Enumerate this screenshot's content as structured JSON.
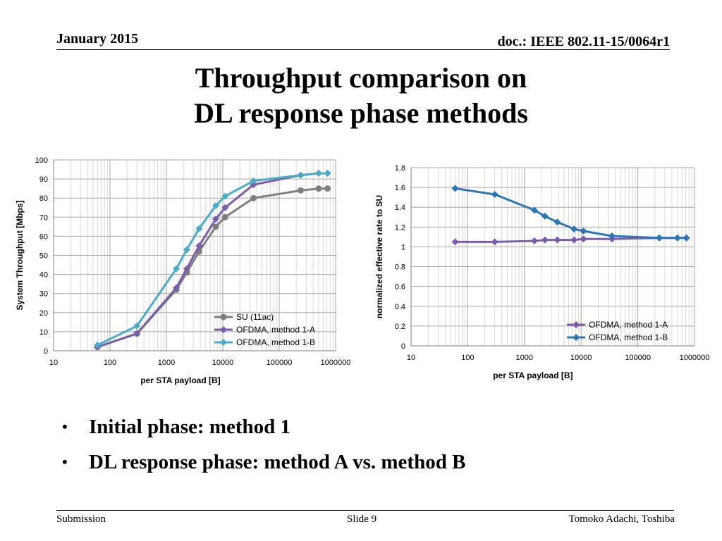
{
  "header": {
    "date": "January 2015",
    "doc": "doc.: IEEE 802.11-15/0064r1"
  },
  "title": {
    "line1": "Throughput comparison on",
    "line2": "DL response phase methods"
  },
  "bullets": [
    "Initial phase: method 1",
    "DL response phase: method A vs. method B"
  ],
  "footer": {
    "left": "Submission",
    "center": "Slide 9",
    "right": "Tomoko Adachi, Toshiba"
  },
  "chart_data": [
    {
      "type": "line",
      "xscale": "log",
      "xlim": [
        10,
        1000000
      ],
      "ylim": [
        0,
        100
      ],
      "xticks": [
        10,
        100,
        1000,
        10000,
        100000,
        1000000
      ],
      "xtick_labels": [
        "10",
        "100",
        "1000",
        "10000",
        "100000",
        "1000000"
      ],
      "yticks": [
        0,
        10,
        20,
        30,
        40,
        50,
        60,
        70,
        80,
        90,
        100
      ],
      "ytick_labels": [
        "0",
        "10",
        "20",
        "30",
        "40",
        "50",
        "60",
        "70",
        "80",
        "90",
        "100"
      ],
      "xlabel": "per STA payload [B]",
      "ylabel": "System Throughput [Mbps]",
      "grid": true,
      "legend_position": "bottom-right",
      "series": [
        {
          "name": "SU (11ac)",
          "color": "#7f7f7f",
          "marker": "circle",
          "x": [
            60,
            300,
            1500,
            2300,
            3800,
            7500,
            11000,
            35000,
            240000,
            500000,
            720000
          ],
          "y": [
            2,
            9,
            32,
            41,
            52,
            65,
            70,
            80,
            84,
            85,
            85
          ]
        },
        {
          "name": "OFDMA, method 1-A",
          "color": "#7b5ea7",
          "marker": "diamond",
          "x": [
            60,
            300,
            1500,
            2300,
            3800,
            7500,
            11000,
            35000,
            240000,
            500000,
            720000
          ],
          "y": [
            2,
            9,
            33,
            43,
            55,
            69,
            75,
            87,
            92,
            93,
            93
          ]
        },
        {
          "name": "OFDMA, method 1-B",
          "color": "#4bacc6",
          "marker": "diamond",
          "x": [
            60,
            300,
            1500,
            2300,
            3800,
            7500,
            11000,
            35000,
            240000,
            500000,
            720000
          ],
          "y": [
            3,
            13,
            43,
            53,
            64,
            76,
            81,
            89,
            92,
            93,
            93
          ]
        }
      ]
    },
    {
      "type": "line",
      "xscale": "log",
      "xlim": [
        10,
        1000000
      ],
      "ylim": [
        0,
        1.8
      ],
      "xticks": [
        10,
        100,
        1000,
        10000,
        100000,
        1000000
      ],
      "xtick_labels": [
        "10",
        "100",
        "1000",
        "10000",
        "100000",
        "1000000"
      ],
      "yticks": [
        0,
        0.2,
        0.4,
        0.6,
        0.8,
        1,
        1.2,
        1.4,
        1.6,
        1.8
      ],
      "ytick_labels": [
        "0",
        "0.2",
        "0.4",
        "0.6",
        "0.8",
        "1",
        "1.2",
        "1.4",
        "1.6",
        "1.8"
      ],
      "xlabel": "per STA payload [B]",
      "ylabel": "normalized effective rate to SU",
      "grid": true,
      "legend_position": "bottom-right",
      "series": [
        {
          "name": "OFDMA, method 1-A",
          "color": "#7b5ea7",
          "marker": "diamond",
          "x": [
            60,
            300,
            1500,
            2300,
            3800,
            7500,
            11000,
            35000,
            240000,
            500000,
            720000
          ],
          "y": [
            1.05,
            1.05,
            1.06,
            1.07,
            1.07,
            1.07,
            1.08,
            1.08,
            1.09,
            1.09,
            1.09
          ]
        },
        {
          "name": "OFDMA, method 1-B",
          "color": "#2e75b6",
          "marker": "diamond",
          "x": [
            60,
            300,
            1500,
            2300,
            3800,
            7500,
            11000,
            35000,
            240000,
            500000,
            720000
          ],
          "y": [
            1.59,
            1.53,
            1.37,
            1.31,
            1.25,
            1.18,
            1.16,
            1.11,
            1.09,
            1.09,
            1.09
          ]
        }
      ]
    }
  ]
}
